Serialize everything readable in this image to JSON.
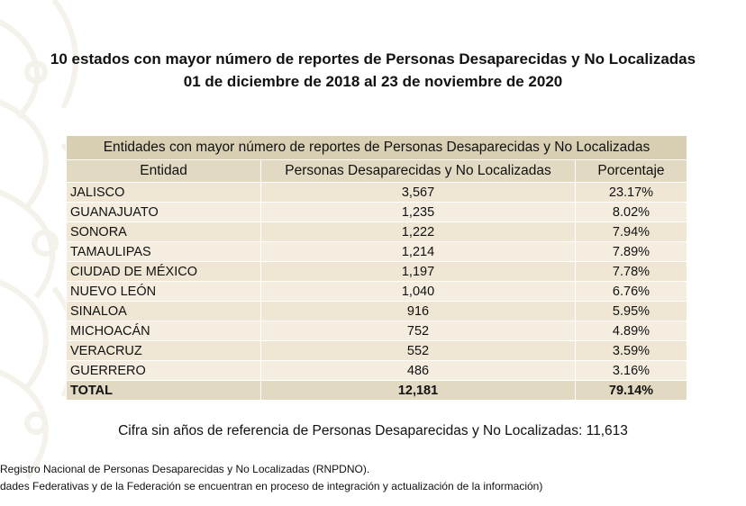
{
  "title": {
    "line1": "10 estados con mayor número de reportes de Personas Desaparecidas y No Localizadas",
    "line2": "01 de diciembre de 2018 al 23 de noviembre de 2020"
  },
  "table": {
    "caption": "Entidades con mayor número de reportes de Personas Desaparecidas y No Localizadas",
    "headers": [
      "Entidad",
      "Personas Desaparecidas y No Localizadas",
      "Porcentaje"
    ],
    "rows": [
      [
        "JALISCO",
        "3,567",
        "23.17%"
      ],
      [
        "GUANAJUATO",
        "1,235",
        "8.02%"
      ],
      [
        "SONORA",
        "1,222",
        "7.94%"
      ],
      [
        "TAMAULIPAS",
        "1,214",
        "7.89%"
      ],
      [
        "CIUDAD DE MÉXICO",
        "1,197",
        "7.78%"
      ],
      [
        "NUEVO LEÓN",
        "1,040",
        "6.76%"
      ],
      [
        "SINALOA",
        "916",
        "5.95%"
      ],
      [
        "MICHOACÁN",
        "752",
        "4.89%"
      ],
      [
        "VERACRUZ",
        "552",
        "3.59%"
      ],
      [
        "GUERRERO",
        "486",
        "3.16%"
      ]
    ],
    "total": [
      "TOTAL",
      "12,181",
      "79.14%"
    ]
  },
  "cifra": "Cifra sin años de referencia de Personas Desaparecidas y No Localizadas: 11,613",
  "notes": [
    "Registro Nacional de Personas Desaparecidas y No Localizadas (RNPDNO).",
    "dades Federativas y de la Federación se encuentran en proceso de integración y actualización de la información)"
  ],
  "colors": {
    "caption_bg": "#d9cfb3",
    "header_bg": "#e2d9c2",
    "row_bg": "#f4ede0",
    "watermark": "#c8b98f"
  },
  "icons": {
    "watermark": "decorative-floral-pattern"
  }
}
